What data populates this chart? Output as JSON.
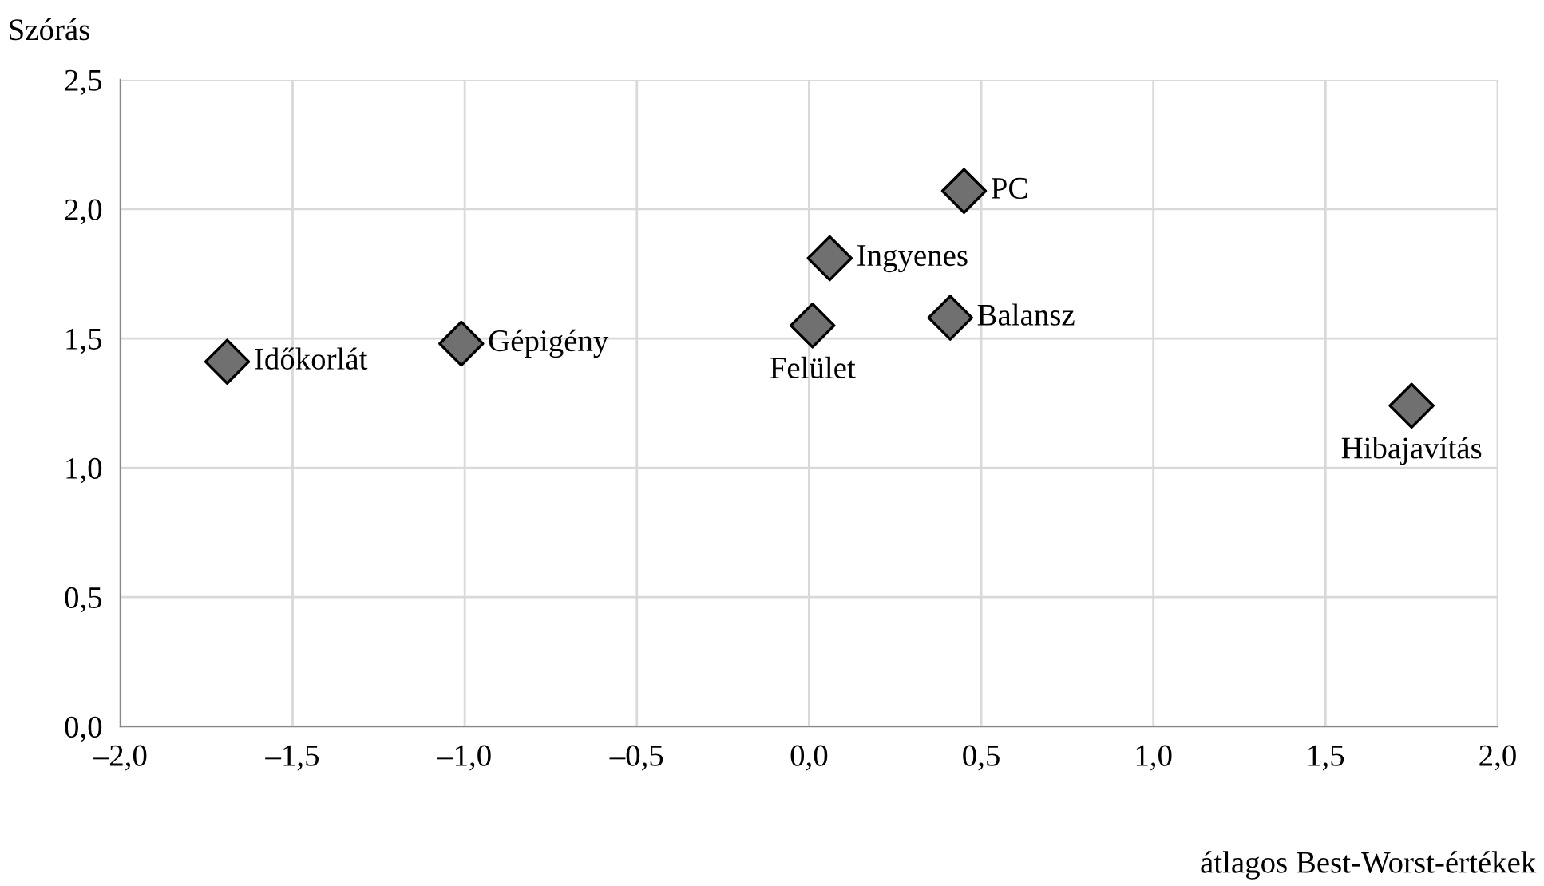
{
  "chart_data": {
    "type": "scatter",
    "xlabel": "átlagos Best-Worst-értékek",
    "ylabel": "Szórás",
    "x": [
      -1.69,
      -1.01,
      0.01,
      0.06,
      0.41,
      0.45,
      1.75
    ],
    "values": [
      1.41,
      1.48,
      1.55,
      1.81,
      1.58,
      2.07,
      1.24
    ],
    "color": "#707070",
    "marker": "diamond",
    "grid": true,
    "legend": false,
    "annotations": [
      {
        "text": "Időkorlát",
        "x": -1.69,
        "y": 1.41
      },
      {
        "text": "Gépigény",
        "x": -1.01,
        "y": 1.48
      },
      {
        "text": "Felület",
        "x": 0.01,
        "y": 1.55
      },
      {
        "text": "Ingyenes",
        "x": 0.06,
        "y": 1.81
      },
      {
        "text": "Balansz",
        "x": 0.41,
        "y": 1.58
      },
      {
        "text": "PC",
        "x": 0.45,
        "y": 2.07
      },
      {
        "text": "Hibajavítás",
        "x": 1.75,
        "y": 1.24
      }
    ],
    "xlim": [
      -2,
      2
    ],
    "ylim": [
      0,
      2.5
    ],
    "xticks": [
      {
        "value": -2,
        "label": "–2,0"
      },
      {
        "value": -1.5,
        "label": "–1,5"
      },
      {
        "value": -1,
        "label": "–1,0"
      },
      {
        "value": -0.5,
        "label": "–0,5"
      },
      {
        "value": 0,
        "label": "0,0"
      },
      {
        "value": 0.5,
        "label": "0,5"
      },
      {
        "value": 1,
        "label": "1,0"
      },
      {
        "value": 1.5,
        "label": "1,5"
      },
      {
        "value": 2,
        "label": "2,0"
      }
    ],
    "yticks": [
      {
        "value": 0,
        "label": "0,0"
      },
      {
        "value": 0.5,
        "label": "0,5"
      },
      {
        "value": 1,
        "label": "1,0"
      },
      {
        "value": 1.5,
        "label": "1,5"
      },
      {
        "value": 2,
        "label": "2,0"
      },
      {
        "value": 2.5,
        "label": "2,5"
      }
    ]
  }
}
